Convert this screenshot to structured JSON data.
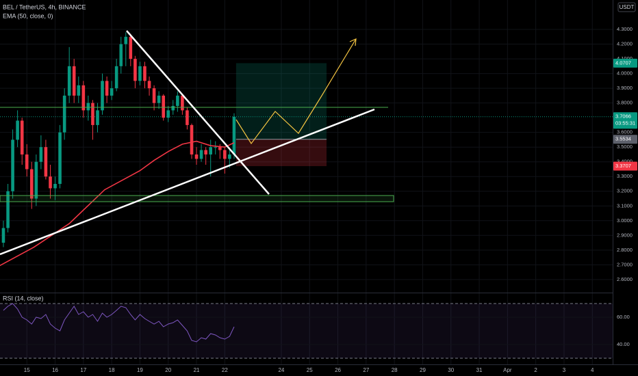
{
  "chart_data": {
    "type": "candlestick",
    "title": "BEL / TetherUS, 4h, BINANCE",
    "indicator": "EMA (50, close, 0)",
    "currency": "USDT",
    "xlim": [
      14.05,
      35.72
    ],
    "xticks": [
      15,
      16,
      17,
      18,
      19,
      20,
      21,
      22,
      24,
      25,
      26,
      27,
      28,
      29,
      30,
      31,
      {
        "value": 32,
        "label": "Apr"
      },
      {
        "value": 33,
        "label": "2"
      },
      {
        "value": 34,
        "label": "3"
      },
      {
        "value": 35,
        "label": "4"
      }
    ],
    "ylim": [
      2.525,
      4.5
    ],
    "yticks": [
      {
        "value": 2.6,
        "label": "2.6000"
      },
      {
        "value": 2.7,
        "label": "2.7000"
      },
      {
        "value": 2.8,
        "label": "2.8000"
      },
      {
        "value": 2.9,
        "label": "2.9000"
      },
      {
        "value": 3.0,
        "label": "3.0000"
      },
      {
        "value": 3.1,
        "label": "3.1000"
      },
      {
        "value": 3.2,
        "label": "3.2000"
      },
      {
        "value": 3.3,
        "label": "3.3000"
      },
      {
        "value": 3.4,
        "label": "3.4000"
      },
      {
        "value": 3.5,
        "label": "3.5000"
      },
      {
        "value": 3.6,
        "label": "3.6000"
      },
      {
        "value": 3.8,
        "label": "3.8000"
      },
      {
        "value": 3.9,
        "label": "3.9000"
      },
      {
        "value": 4.0,
        "label": "4.0000"
      },
      {
        "value": 4.1,
        "label": "4.1000"
      },
      {
        "value": 4.2,
        "label": "4.2000"
      },
      {
        "value": 4.3,
        "label": "4.3000"
      }
    ],
    "up_color": "#089981",
    "down_color": "#f23645",
    "x": [
      14.17,
      14.33,
      14.5,
      14.67,
      14.83,
      15,
      15.17,
      15.33,
      15.5,
      15.67,
      15.83,
      16,
      16.17,
      16.33,
      16.5,
      16.67,
      16.83,
      17,
      17.17,
      17.33,
      17.5,
      17.67,
      17.83,
      18,
      18.17,
      18.33,
      18.5,
      18.67,
      18.83,
      19,
      19.17,
      19.33,
      19.5,
      19.67,
      19.83,
      20,
      20.17,
      20.33,
      20.5,
      20.67,
      20.83,
      21,
      21.17,
      21.33,
      21.5,
      21.67,
      21.83,
      22,
      22.17,
      22.33
    ],
    "candles": [
      [
        2.85,
        3.0,
        2.82,
        2.95
      ],
      [
        2.95,
        3.25,
        2.92,
        3.2
      ],
      [
        3.2,
        3.62,
        3.15,
        3.55
      ],
      [
        3.55,
        3.75,
        3.5,
        3.68
      ],
      [
        3.68,
        3.7,
        3.38,
        3.45
      ],
      [
        3.45,
        3.52,
        3.3,
        3.35
      ],
      [
        3.35,
        3.4,
        3.08,
        3.15
      ],
      [
        3.15,
        3.45,
        3.1,
        3.4
      ],
      [
        3.4,
        3.58,
        3.35,
        3.5
      ],
      [
        3.5,
        3.55,
        3.28,
        3.3
      ],
      [
        3.3,
        3.38,
        3.15,
        3.22
      ],
      [
        3.22,
        3.3,
        3.14,
        3.25
      ],
      [
        3.25,
        3.65,
        3.22,
        3.6
      ],
      [
        3.6,
        3.9,
        3.55,
        3.85
      ],
      [
        3.85,
        4.18,
        3.8,
        4.05
      ],
      [
        4.05,
        4.1,
        3.8,
        3.85
      ],
      [
        3.85,
        3.98,
        3.8,
        3.92
      ],
      [
        3.92,
        3.95,
        3.7,
        3.75
      ],
      [
        3.75,
        3.85,
        3.68,
        3.8
      ],
      [
        3.8,
        3.82,
        3.55,
        3.65
      ],
      [
        3.65,
        3.8,
        3.6,
        3.75
      ],
      [
        3.75,
        4.0,
        3.72,
        3.95
      ],
      [
        3.95,
        3.98,
        3.8,
        3.85
      ],
      [
        3.85,
        3.95,
        3.82,
        3.9
      ],
      [
        3.9,
        4.1,
        3.88,
        4.05
      ],
      [
        4.05,
        4.25,
        4.0,
        4.2
      ],
      [
        4.2,
        4.28,
        4.05,
        4.25
      ],
      [
        4.25,
        4.27,
        4.05,
        4.1
      ],
      [
        4.1,
        4.12,
        3.9,
        3.95
      ],
      [
        3.95,
        4.08,
        3.92,
        4.05
      ],
      [
        4.05,
        4.08,
        3.9,
        3.95
      ],
      [
        3.95,
        3.98,
        3.85,
        3.9
      ],
      [
        3.9,
        3.92,
        3.75,
        3.8
      ],
      [
        3.8,
        3.88,
        3.76,
        3.85
      ],
      [
        3.85,
        3.86,
        3.68,
        3.7
      ],
      [
        3.7,
        3.78,
        3.67,
        3.75
      ],
      [
        3.75,
        3.82,
        3.72,
        3.78
      ],
      [
        3.78,
        3.88,
        3.74,
        3.85
      ],
      [
        3.85,
        3.86,
        3.72,
        3.75
      ],
      [
        3.75,
        3.77,
        3.62,
        3.65
      ],
      [
        3.65,
        3.66,
        3.42,
        3.45
      ],
      [
        3.45,
        3.5,
        3.38,
        3.42
      ],
      [
        3.42,
        3.52,
        3.4,
        3.48
      ],
      [
        3.48,
        3.5,
        3.38,
        3.45
      ],
      [
        3.45,
        3.55,
        3.3,
        3.5
      ],
      [
        3.5,
        3.54,
        3.45,
        3.5
      ],
      [
        3.5,
        3.52,
        3.42,
        3.48
      ],
      [
        3.48,
        3.5,
        3.32,
        3.42
      ],
      [
        3.42,
        3.48,
        3.36,
        3.45
      ],
      [
        3.45,
        3.73,
        3.42,
        3.7066
      ]
    ],
    "ema": {
      "color": "#f23645",
      "x": [
        14.0,
        15.25,
        16.5,
        17.75,
        19.0,
        19.5,
        20.0,
        20.5,
        21.0,
        21.5,
        22.0,
        22.33
      ],
      "values": [
        2.69,
        2.82,
        2.98,
        3.21,
        3.34,
        3.41,
        3.47,
        3.52,
        3.54,
        3.51,
        3.5,
        3.53
      ]
    },
    "last_price": 3.7066,
    "countdown": "03:55:31",
    "position": {
      "target": 4.0707,
      "entry": 3.5534,
      "stop": 3.3707,
      "xlim": [
        22.4,
        25.6
      ]
    },
    "rsi": {
      "title": "RSI (14, close)",
      "color": "#7e57c2",
      "ylim": [
        25,
        78
      ],
      "bands": [
        30,
        70
      ],
      "yticks": [
        {
          "value": 60,
          "label": "60.00"
        },
        {
          "value": 40,
          "label": "40.00"
        }
      ],
      "values": [
        65,
        68,
        70,
        66,
        60,
        58,
        55,
        60,
        59,
        62,
        55,
        52,
        50,
        58,
        63,
        68,
        62,
        64,
        60,
        62,
        57,
        63,
        60,
        62,
        65,
        68,
        67,
        62,
        58,
        62,
        59,
        57,
        55,
        57,
        53,
        55,
        56,
        58,
        54,
        50,
        43,
        42,
        45,
        44,
        48,
        47,
        45,
        44,
        46,
        53
      ]
    }
  }
}
